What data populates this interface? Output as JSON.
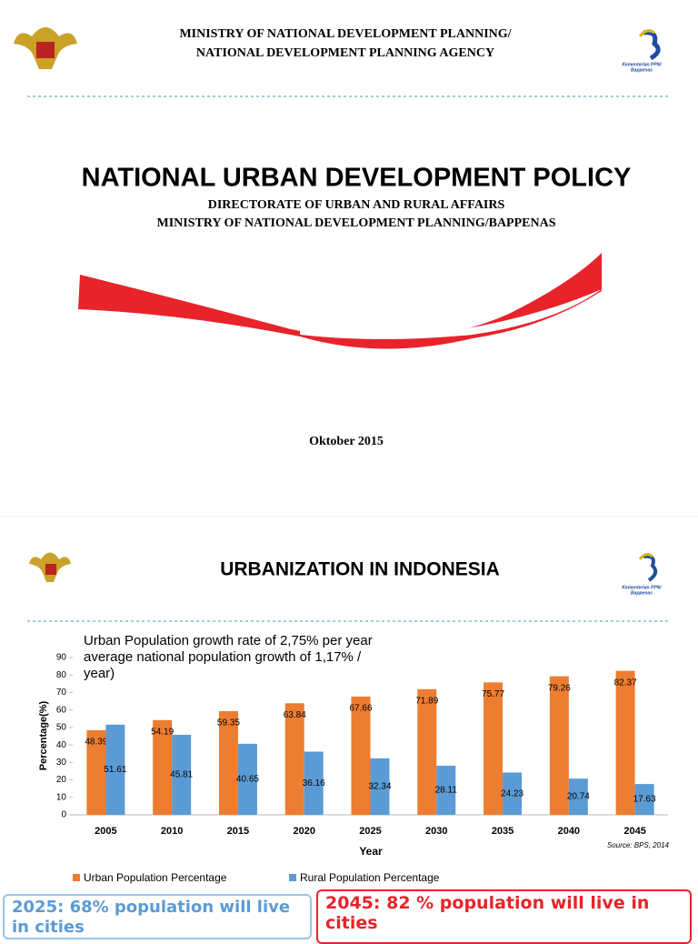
{
  "slide1": {
    "header": [
      "MINISTRY OF NATIONAL DEVELOPMENT PLANNING/",
      "NATIONAL DEVELOPMENT PLANNING AGENCY"
    ],
    "logo_text": [
      "Kementerian PPN/",
      "Bappenas"
    ],
    "title": "NATIONAL URBAN DEVELOPMENT POLICY",
    "subtitle": [
      "DIRECTORATE OF URBAN AND RURAL AFFAIRS",
      "MINISTRY OF NATIONAL DEVELOPMENT PLANNING/BAPPENAS"
    ],
    "date": "Oktober 2015"
  },
  "slide2": {
    "title": "URBANIZATION IN INDONESIA",
    "logo_text": [
      "Kementerian PPN/",
      "Bappenas"
    ],
    "box_left": "2025: 68% population will live in cities",
    "box_right": "2045: 82 % population will live in cities"
  },
  "chart_data": {
    "type": "bar",
    "title": [
      "Urban Population growth rate of 2,75% per year",
      "average national population growth of 1,17% /",
      "year)"
    ],
    "x_label": "Year",
    "y_label": "Percentage(%)",
    "source": "Source:  BPS, 2014",
    "categories": [
      "2005",
      "2010",
      "2015",
      "2020",
      "2025",
      "2030",
      "2035",
      "2040",
      "2045"
    ],
    "series": [
      {
        "name": "Urban Population Percentage",
        "color": "#ed7d31",
        "values": [
          48.39,
          54.19,
          59.35,
          63.84,
          67.66,
          71.89,
          75.77,
          79.26,
          82.37
        ]
      },
      {
        "name": "Rural Population Percentage",
        "color": "#5b9bd5",
        "values": [
          51.61,
          45.81,
          40.65,
          36.16,
          32.34,
          28.11,
          24.23,
          20.74,
          17.63
        ]
      }
    ],
    "ylim": [
      0,
      90
    ],
    "yticks": [
      0,
      10,
      20,
      30,
      40,
      50,
      60,
      70,
      80,
      90
    ]
  }
}
